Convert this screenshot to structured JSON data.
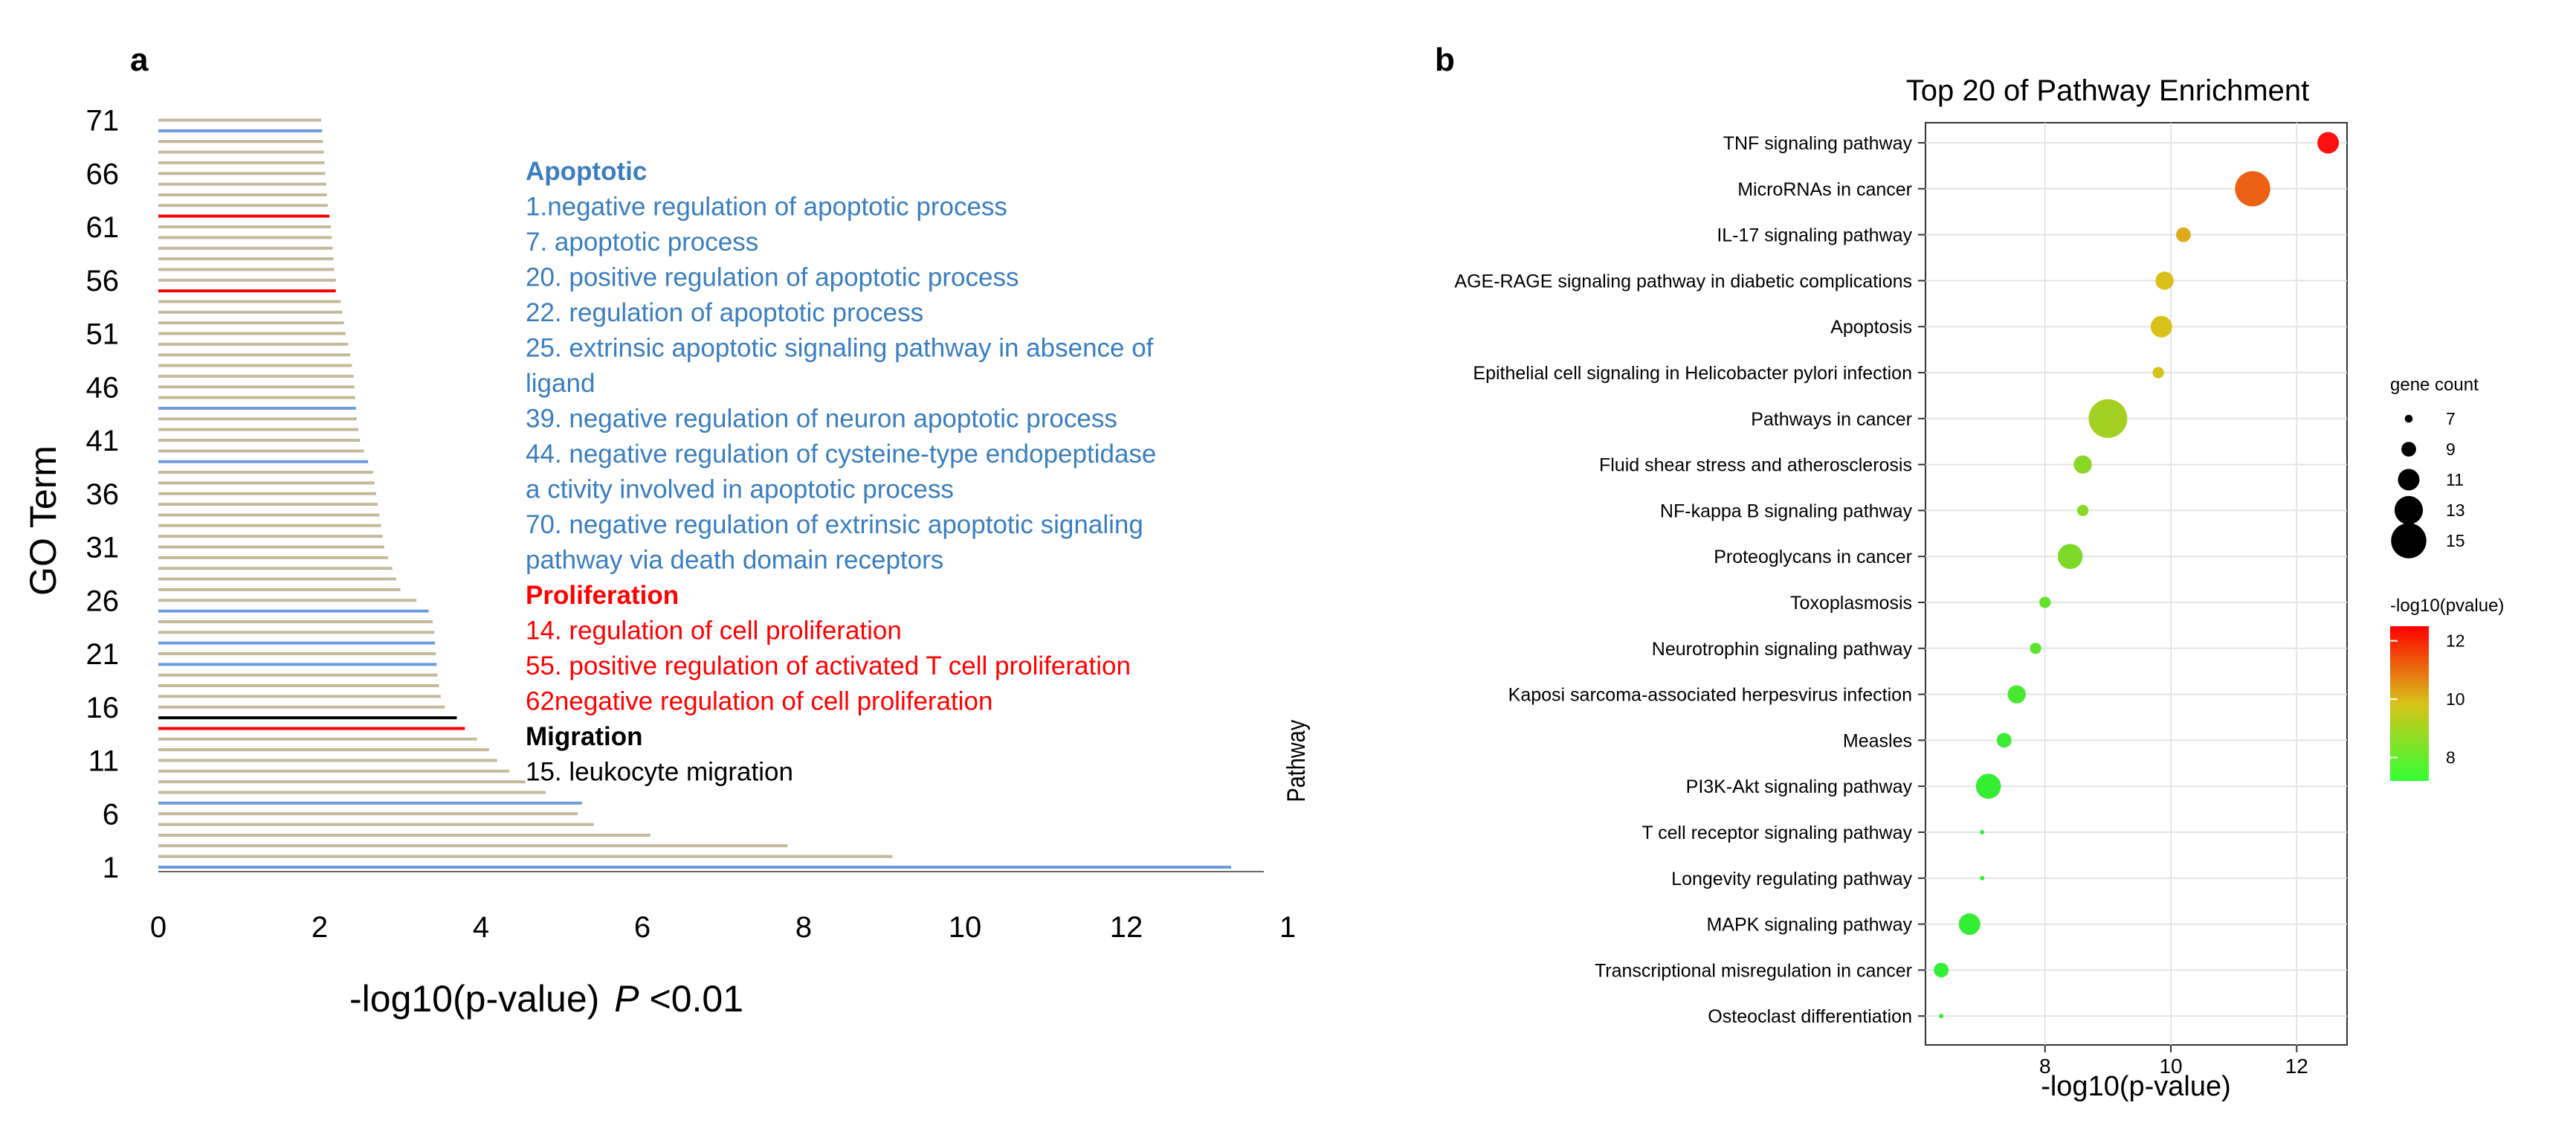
{
  "panels": {
    "a": "a",
    "b": "b"
  },
  "annotations": {
    "groups": [
      {
        "heading": "Apoptotic",
        "color": "#3a7ebf",
        "lines": [
          "1.negative regulation of apoptotic process",
          "7. apoptotic process",
          "20. positive regulation of apoptotic process",
          "22. regulation of apoptotic process",
          "25. extrinsic apoptotic signaling pathway in absence of",
          "ligand",
          "39. negative regulation of neuron apoptotic process",
          "44. negative regulation of cysteine-type endopeptidase",
          "a ctivity involved in apoptotic process",
          "70. negative regulation of extrinsic apoptotic signaling",
          "pathway via death domain receptors"
        ]
      },
      {
        "heading": "Proliferation",
        "color": "#ff0000",
        "lines": [
          "14. regulation of cell proliferation",
          "55. positive regulation of activated T cell proliferation",
          "62negative regulation  of cell proliferation"
        ]
      },
      {
        "heading": "Migration",
        "color": "#000000",
        "lines": [
          "15. leukocyte migration"
        ]
      }
    ]
  },
  "chart_data": [
    {
      "type": "bar",
      "orientation": "horizontal",
      "ylabel": "GO Term",
      "xlabel_text": "-log10(p-value)",
      "xlabel_italic": "P",
      "xlabel_suffix": " <0.01",
      "ytick_labels": [
        "1",
        "6",
        "11",
        "16",
        "21",
        "26",
        "31",
        "36",
        "41",
        "46",
        "51",
        "56",
        "61",
        "66",
        "71"
      ],
      "xtick_labels": [
        "0",
        "2",
        "4",
        "6",
        "8",
        "10",
        "12",
        "1"
      ],
      "xlim": [
        0,
        14
      ],
      "colors": {
        "default": "#c4b99a",
        "apoptotic": "#6d9be0",
        "proliferation": "#ff0000",
        "migration": "#000000"
      },
      "categories": [
        1,
        2,
        3,
        4,
        5,
        6,
        7,
        8,
        9,
        10,
        11,
        12,
        13,
        14,
        15,
        16,
        17,
        18,
        19,
        20,
        21,
        22,
        23,
        24,
        25,
        26,
        27,
        28,
        29,
        30,
        31,
        32,
        33,
        34,
        35,
        36,
        37,
        38,
        39,
        40,
        41,
        42,
        43,
        44,
        45,
        46,
        47,
        48,
        49,
        50,
        51,
        52,
        53,
        54,
        55,
        56,
        57,
        58,
        59,
        60,
        61,
        62,
        63,
        64,
        65,
        66,
        67,
        68,
        69,
        70,
        71
      ],
      "values": [
        13.3,
        9.1,
        7.8,
        6.1,
        5.4,
        5.2,
        5.25,
        4.8,
        4.55,
        4.35,
        4.2,
        4.1,
        3.95,
        3.8,
        3.7,
        3.55,
        3.5,
        3.48,
        3.46,
        3.45,
        3.44,
        3.43,
        3.42,
        3.4,
        3.35,
        3.2,
        3.0,
        2.95,
        2.9,
        2.85,
        2.8,
        2.78,
        2.76,
        2.74,
        2.72,
        2.7,
        2.68,
        2.66,
        2.6,
        2.55,
        2.5,
        2.48,
        2.46,
        2.45,
        2.44,
        2.43,
        2.42,
        2.4,
        2.38,
        2.35,
        2.32,
        2.3,
        2.28,
        2.26,
        2.2,
        2.2,
        2.18,
        2.17,
        2.16,
        2.15,
        2.14,
        2.12,
        2.1,
        2.09,
        2.08,
        2.07,
        2.06,
        2.05,
        2.04,
        2.03,
        2.02
      ],
      "groups": {
        "apoptotic": [
          1,
          7,
          20,
          22,
          25,
          39,
          44,
          70
        ],
        "proliferation": [
          14,
          55,
          62
        ],
        "migration": [
          15
        ]
      }
    },
    {
      "type": "scatter",
      "title": "Top 20 of Pathway Enrichment",
      "xlabel": "-log10(p-value)",
      "ylabel": "Pathway",
      "xlim": [
        6.1,
        12.8
      ],
      "xticks": [
        8,
        10,
        12
      ],
      "xtick_labels": [
        "8",
        "10",
        "12"
      ],
      "grid": true,
      "categories": [
        "TNF signaling pathway",
        "MicroRNAs in cancer",
        "IL-17 signaling pathway",
        "AGE-RAGE signaling pathway in diabetic complications",
        "Apoptosis",
        "Epithelial cell signaling in Helicobacter pylori infection",
        "Pathways in cancer",
        "Fluid shear stress and atherosclerosis",
        "NF-kappa B signaling pathway",
        "Proteoglycans in cancer",
        "Toxoplasmosis",
        "Neurotrophin signaling pathway",
        "Kaposi sarcoma-associated herpesvirus infection",
        "Measles",
        "PI3K-Akt signaling pathway",
        "T cell receptor signaling pathway",
        "Longevity regulating pathway",
        "MAPK signaling pathway",
        "Transcriptional misregulation in cancer",
        "Osteoclast differentiation"
      ],
      "x": [
        12.5,
        11.3,
        10.2,
        9.9,
        9.85,
        9.8,
        9.0,
        8.6,
        8.6,
        8.4,
        8.0,
        7.85,
        7.55,
        7.35,
        7.1,
        7.0,
        7.0,
        6.8,
        6.35,
        6.35
      ],
      "gene_count": [
        11,
        15,
        9,
        10,
        11,
        8,
        16,
        10,
        8,
        12,
        8,
        8,
        10,
        9,
        12,
        6,
        6,
        11,
        9,
        6
      ],
      "size_legend": {
        "title": "gene count",
        "values": [
          7,
          9,
          11,
          13,
          15
        ]
      },
      "color_legend": {
        "title": "-log10(pvalue)",
        "range": [
          7.2,
          12.5
        ],
        "ticks": [
          8,
          10,
          12
        ],
        "tick_labels": [
          "8",
          "10",
          "12"
        ],
        "low_color": "#33ff33",
        "high_color": "#ff0000"
      }
    }
  ]
}
